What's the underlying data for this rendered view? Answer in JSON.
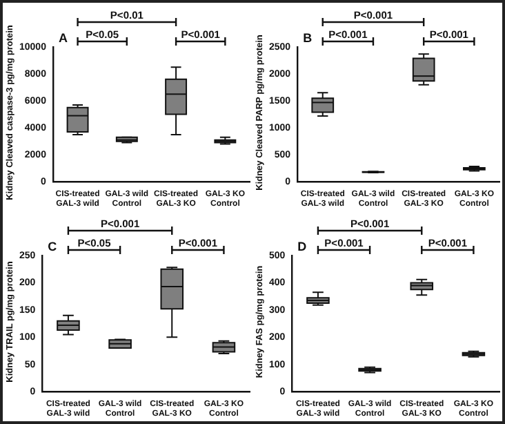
{
  "chart_data": [
    {
      "type": "box",
      "title": "A",
      "ylabel": "Kidney Cleaved caspase-3 pg/mg protein",
      "categories": [
        "CIS-treated\nGAL-3 wild",
        "GAL-3 wild\nControl",
        "CIS-treated\nGAL-3 KO",
        "GAL-3 KO\nControl"
      ],
      "color": "#7f7f7f",
      "ylim": [
        0,
        10000
      ],
      "yticks": [
        0,
        2000,
        4000,
        6000,
        8000,
        10000
      ],
      "grid": false,
      "boxes": [
        {
          "low": 3500,
          "q1": 3700,
          "median": 4900,
          "q3": 5500,
          "high": 5700
        },
        {
          "low": 2900,
          "q1": 3000,
          "median": 3100,
          "q3": 3300,
          "high": 3300
        },
        {
          "low": 3500,
          "q1": 5000,
          "median": 6500,
          "q3": 7600,
          "high": 8500
        },
        {
          "low": 2800,
          "q1": 2900,
          "median": 3000,
          "q3": 3100,
          "high": 3300
        }
      ],
      "annotations": [
        "P<0.05",
        "P<0.01",
        "P<0.001"
      ]
    },
    {
      "type": "box",
      "title": "B",
      "ylabel": "Kidney Cleaved PARP pg/mg protein",
      "categories": [
        "CIS-treated\nGAL-3 wild",
        "GAL-3 wild\nControl",
        "CIS-treated\nGAL-3 KO",
        "GAL-3 KO\nControl"
      ],
      "color": "#7f7f7f",
      "ylim": [
        0,
        2500
      ],
      "yticks": [
        0,
        500,
        1000,
        1500,
        2000,
        2500
      ],
      "grid": false,
      "boxes": [
        {
          "low": 1220,
          "q1": 1290,
          "median": 1470,
          "q3": 1550,
          "high": 1650
        },
        {
          "low": 170,
          "q1": 175,
          "median": 180,
          "q3": 185,
          "high": 190
        },
        {
          "low": 1800,
          "q1": 1870,
          "median": 1960,
          "q3": 2290,
          "high": 2370
        },
        {
          "low": 200,
          "q1": 225,
          "median": 245,
          "q3": 260,
          "high": 285
        }
      ],
      "annotations": [
        "P<0.001",
        "P<0.001",
        "P<0.001"
      ]
    },
    {
      "type": "box",
      "title": "C",
      "ylabel": "Kidney TRAIL pg/mg protein",
      "categories": [
        "CIS-treated\nGAL-3 wild",
        "GAL-3 wild\nControl",
        "CIS-treated\nGAL-3 KO",
        "GAL-3 KO\nControl"
      ],
      "color": "#7f7f7f",
      "ylim": [
        0,
        250
      ],
      "yticks": [
        0,
        50,
        100,
        150,
        200,
        250
      ],
      "grid": false,
      "boxes": [
        {
          "low": 105,
          "q1": 113,
          "median": 122,
          "q3": 130,
          "high": 140
        },
        {
          "low": 80,
          "q1": 80,
          "median": 88,
          "q3": 95,
          "high": 96
        },
        {
          "low": 100,
          "q1": 152,
          "median": 193,
          "q3": 225,
          "high": 228
        },
        {
          "low": 70,
          "q1": 73,
          "median": 82,
          "q3": 90,
          "high": 93
        }
      ],
      "annotations": [
        "P<0.05",
        "P<0.001",
        "P<0.001"
      ]
    },
    {
      "type": "box",
      "title": "D",
      "ylabel": "Kidney FAS pg/mg protein",
      "categories": [
        "CIS-treated\nGAL-3 wild",
        "GAL-3 wild\nControl",
        "CIS-treated\nGAL-3 KO",
        "GAL-3 KO\nControl"
      ],
      "color": "#7f7f7f",
      "ylim": [
        0,
        500
      ],
      "yticks": [
        0,
        100,
        200,
        300,
        400,
        500
      ],
      "grid": false,
      "boxes": [
        {
          "low": 318,
          "q1": 325,
          "median": 335,
          "q3": 345,
          "high": 365
        },
        {
          "low": 70,
          "q1": 76,
          "median": 80,
          "q3": 85,
          "high": 90
        },
        {
          "low": 355,
          "q1": 375,
          "median": 390,
          "q3": 400,
          "high": 412
        },
        {
          "low": 128,
          "q1": 133,
          "median": 138,
          "q3": 143,
          "high": 148
        }
      ],
      "annotations": [
        "P<0.001",
        "P<0.001",
        "P<0.001"
      ]
    }
  ]
}
